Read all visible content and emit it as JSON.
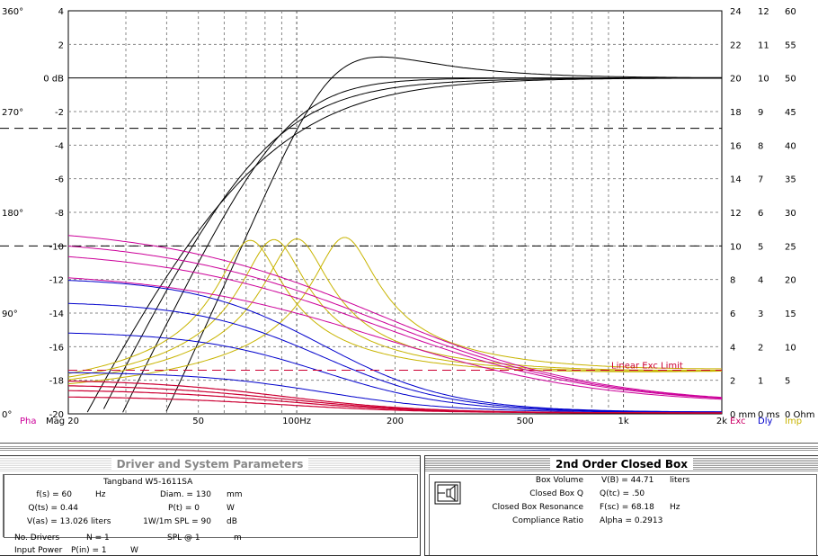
{
  "chart_data": {
    "type": "line",
    "title": "",
    "x_scale": "log",
    "x_range_hz": [
      20,
      2000
    ],
    "x_ticks": [
      {
        "value": 20,
        "label": "Mag 20"
      },
      {
        "value": 50,
        "label": "50"
      },
      {
        "value": 100,
        "label": "100Hz"
      },
      {
        "value": 200,
        "label": "200"
      },
      {
        "value": 500,
        "label": "500"
      },
      {
        "value": 1000,
        "label": "1k"
      },
      {
        "value": 2000,
        "label": "2k"
      }
    ],
    "y_range_db": [
      -20,
      4
    ],
    "y_ticks_db": [
      {
        "value": 4,
        "label": "4"
      },
      {
        "value": 2,
        "label": "2"
      },
      {
        "value": 0,
        "label": "0 dB"
      },
      {
        "value": -2,
        "label": "-2"
      },
      {
        "value": -4,
        "label": "-4"
      },
      {
        "value": -6,
        "label": "-6"
      },
      {
        "value": -8,
        "label": "-8"
      },
      {
        "value": -10,
        "label": "-10"
      },
      {
        "value": -12,
        "label": "-12"
      },
      {
        "value": -14,
        "label": "-14"
      },
      {
        "value": -16,
        "label": "-16"
      },
      {
        "value": -18,
        "label": "-18"
      },
      {
        "value": -20,
        "label": "-20"
      }
    ],
    "phase_ticks": [
      {
        "value": 4,
        "label": "360°"
      },
      {
        "value": -2,
        "label": "270°"
      },
      {
        "value": -8,
        "label": "180°"
      },
      {
        "value": -14,
        "label": "90°"
      },
      {
        "value": -20,
        "label": "0°"
      }
    ],
    "right_axes": [
      {
        "name": "Exc",
        "color": "#cc0066",
        "labels": [
          "24",
          "22",
          "20",
          "18",
          "16",
          "14",
          "12",
          "10",
          "8",
          "6",
          "4",
          "2",
          "0 mm"
        ]
      },
      {
        "name": "Dly",
        "color": "#0000cc",
        "labels": [
          "12",
          "11",
          "10",
          "9",
          "8",
          "7",
          "6",
          "5",
          "4",
          "3",
          "2",
          "1",
          "0 ms"
        ]
      },
      {
        "name": "Imp",
        "color": "#c8b400",
        "labels": [
          "60",
          "55",
          "50",
          "45",
          "40",
          "35",
          "30",
          "25",
          "20",
          "15",
          "10",
          "5",
          "0 Ohm"
        ]
      }
    ],
    "left_bottom_label": "Pha",
    "reference_lines_db": [
      -3,
      -10
    ],
    "excursion_limit": {
      "label": "Linear Exc Limit",
      "value_mm": 2.6
    },
    "series": [
      {
        "group": "magnitude",
        "color": "#000000",
        "qtc": 0.5,
        "fc": 68.18
      },
      {
        "group": "magnitude",
        "color": "#000000",
        "qtc": 0.6,
        "fc": 78
      },
      {
        "group": "magnitude",
        "color": "#000000",
        "qtc": 0.7,
        "fc": 92
      },
      {
        "group": "magnitude",
        "color": "#000000",
        "qtc": 1.0,
        "fc": 128
      },
      {
        "group": "impedance",
        "color": "#c8b400",
        "peak_hz": 72,
        "peak_ohm": 25
      },
      {
        "group": "impedance",
        "color": "#c8b400",
        "peak_hz": 85,
        "peak_ohm": 25
      },
      {
        "group": "impedance",
        "color": "#c8b400",
        "peak_hz": 100,
        "peak_ohm": 25
      },
      {
        "group": "impedance",
        "color": "#c8b400",
        "peak_hz": 140,
        "peak_ohm": 25
      },
      {
        "group": "phase",
        "color": "#cc0099",
        "start_deg": 160
      },
      {
        "group": "phase",
        "color": "#cc0099",
        "start_deg": 150
      },
      {
        "group": "phase",
        "color": "#cc0099",
        "start_deg": 140
      },
      {
        "group": "phase",
        "color": "#cc0099",
        "start_deg": 120
      },
      {
        "group": "delay",
        "color": "#0000cc",
        "start_ms": 4.0
      },
      {
        "group": "delay",
        "color": "#0000cc",
        "start_ms": 3.3
      },
      {
        "group": "delay",
        "color": "#0000cc",
        "start_ms": 2.4
      },
      {
        "group": "delay",
        "color": "#0000cc",
        "start_ms": 1.2
      },
      {
        "group": "excursion",
        "color": "#cc0033",
        "start_mm": 2.0
      },
      {
        "group": "excursion",
        "color": "#cc0033",
        "start_mm": 1.7
      },
      {
        "group": "excursion",
        "color": "#cc0033",
        "start_mm": 1.4
      },
      {
        "group": "excursion",
        "color": "#cc0033",
        "start_mm": 1.0
      }
    ]
  },
  "left_panel": {
    "title": "Driver and System Parameters",
    "driver_name": "Tangband  W5-1611SA",
    "fs_label": "f(s) = 60",
    "fs_unit": "Hz",
    "diam_label": "Diam. = 130",
    "diam_unit": "mm",
    "qts_label": "Q(ts) = 0.44",
    "pt_label": "P(t) = 0",
    "pt_unit": "W",
    "vas_label": "V(as) = 13.026  liters",
    "spl_label": "1W/1m SPL = 90",
    "spl_unit": "dB",
    "ndrivers_label": "No. Drivers",
    "ndrivers_value": "N = 1",
    "splat_label": "SPL @  1",
    "splat_unit": "m",
    "inputpower_label": "Input Power",
    "inputpower_value": "P(in) = 1",
    "inputpower_unit": "W"
  },
  "right_panel": {
    "title": "2nd Order Closed Box",
    "rows": [
      {
        "label": "Box Volume",
        "value": "V(B) = 44.71",
        "unit": "liters"
      },
      {
        "label": "Closed Box Q",
        "value": "Q(tc) = .50",
        "unit": ""
      },
      {
        "label": "Closed Box Resonance",
        "value": "F(sc) = 68.18",
        "unit": "Hz"
      },
      {
        "label": "Compliance Ratio",
        "value": "Alpha = 0.2913",
        "unit": ""
      }
    ]
  }
}
